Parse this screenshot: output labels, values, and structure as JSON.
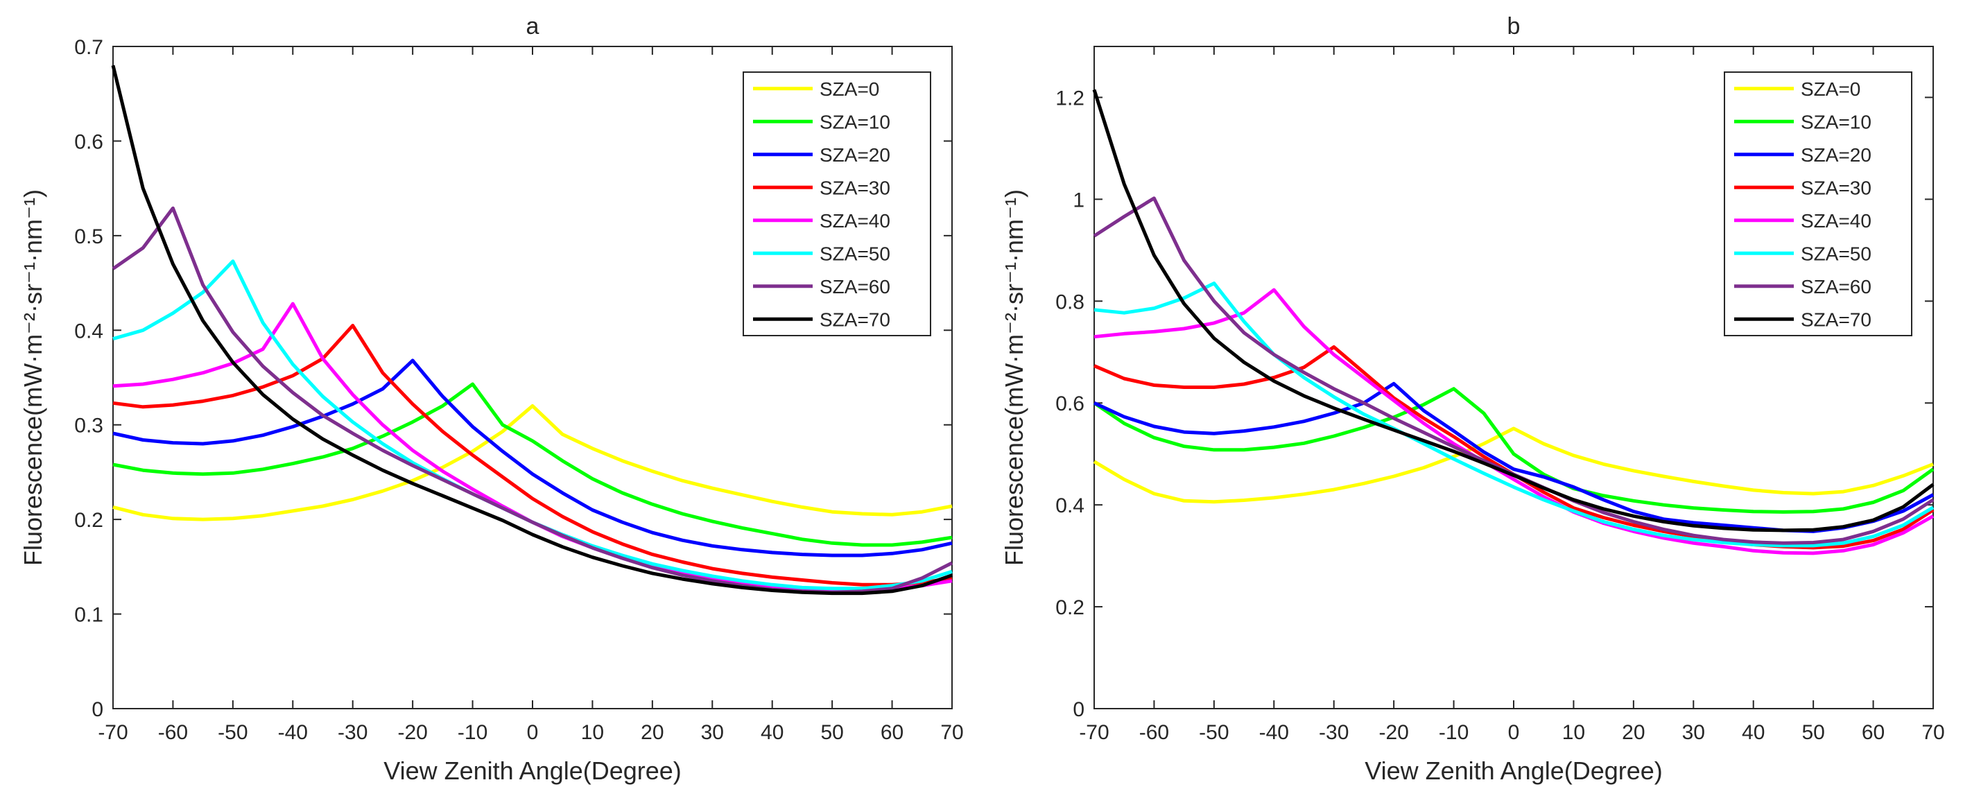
{
  "chart_data": [
    {
      "type": "line",
      "title": "a",
      "xlabel": "View Zenith Angle(Degree)",
      "ylabel": "Fluorescence(mW·m⁻²·sr⁻¹·nm⁻¹)",
      "xlim": [
        -70,
        70
      ],
      "ylim": [
        0,
        0.7
      ],
      "xticks": [
        -70,
        -60,
        -50,
        -40,
        -30,
        -20,
        -10,
        0,
        10,
        20,
        30,
        40,
        50,
        60,
        70
      ],
      "yticks": [
        0,
        0.1,
        0.2,
        0.3,
        0.4,
        0.5,
        0.6,
        0.7
      ],
      "grid": false,
      "legend_position": "top-right",
      "x": [
        -70,
        -65,
        -60,
        -55,
        -50,
        -45,
        -40,
        -35,
        -30,
        -25,
        -20,
        -15,
        -10,
        -5,
        0,
        5,
        10,
        15,
        20,
        25,
        30,
        35,
        40,
        45,
        50,
        55,
        60,
        65,
        70
      ],
      "series": [
        {
          "name": "SZA=0",
          "color": "#ffff00",
          "values": [
            0.213,
            0.205,
            0.201,
            0.2,
            0.201,
            0.204,
            0.209,
            0.214,
            0.221,
            0.23,
            0.241,
            0.255,
            0.272,
            0.293,
            0.32,
            0.29,
            0.275,
            0.262,
            0.251,
            0.241,
            0.233,
            0.226,
            0.219,
            0.213,
            0.208,
            0.206,
            0.205,
            0.208,
            0.214
          ]
        },
        {
          "name": "SZA=10",
          "color": "#00ff00",
          "values": [
            0.258,
            0.252,
            0.249,
            0.248,
            0.249,
            0.253,
            0.259,
            0.266,
            0.275,
            0.288,
            0.303,
            0.32,
            0.343,
            0.3,
            0.283,
            0.262,
            0.243,
            0.228,
            0.216,
            0.206,
            0.198,
            0.191,
            0.185,
            0.179,
            0.175,
            0.173,
            0.173,
            0.176,
            0.181
          ]
        },
        {
          "name": "SZA=20",
          "color": "#0000ff",
          "values": [
            0.291,
            0.284,
            0.281,
            0.28,
            0.283,
            0.289,
            0.298,
            0.309,
            0.322,
            0.338,
            0.368,
            0.33,
            0.298,
            0.272,
            0.248,
            0.228,
            0.21,
            0.197,
            0.186,
            0.178,
            0.172,
            0.168,
            0.165,
            0.163,
            0.162,
            0.162,
            0.164,
            0.168,
            0.175
          ]
        },
        {
          "name": "SZA=30",
          "color": "#ff0000",
          "values": [
            0.323,
            0.319,
            0.321,
            0.325,
            0.331,
            0.34,
            0.352,
            0.37,
            0.405,
            0.355,
            0.322,
            0.293,
            0.268,
            0.245,
            0.222,
            0.203,
            0.187,
            0.174,
            0.163,
            0.155,
            0.148,
            0.143,
            0.139,
            0.136,
            0.133,
            0.131,
            0.131,
            0.133,
            0.138
          ]
        },
        {
          "name": "SZA=40",
          "color": "#ff00ff",
          "values": [
            0.341,
            0.343,
            0.348,
            0.355,
            0.365,
            0.38,
            0.428,
            0.37,
            0.332,
            0.3,
            0.273,
            0.251,
            0.232,
            0.214,
            0.197,
            0.182,
            0.17,
            0.159,
            0.151,
            0.144,
            0.138,
            0.133,
            0.129,
            0.127,
            0.126,
            0.126,
            0.127,
            0.13,
            0.135
          ]
        },
        {
          "name": "SZA=50",
          "color": "#00ffff",
          "values": [
            0.391,
            0.4,
            0.418,
            0.44,
            0.473,
            0.408,
            0.364,
            0.33,
            0.303,
            0.28,
            0.26,
            0.243,
            0.227,
            0.212,
            0.197,
            0.184,
            0.172,
            0.162,
            0.153,
            0.146,
            0.14,
            0.135,
            0.131,
            0.128,
            0.127,
            0.127,
            0.13,
            0.135,
            0.145
          ]
        },
        {
          "name": "SZA=60",
          "color": "#7e2f8e",
          "values": [
            0.465,
            0.487,
            0.529,
            0.448,
            0.398,
            0.362,
            0.334,
            0.31,
            0.291,
            0.273,
            0.257,
            0.242,
            0.227,
            0.212,
            0.197,
            0.183,
            0.17,
            0.159,
            0.149,
            0.141,
            0.135,
            0.13,
            0.126,
            0.124,
            0.123,
            0.124,
            0.127,
            0.138,
            0.154
          ]
        },
        {
          "name": "SZA=70",
          "color": "#000000",
          "values": [
            0.68,
            0.55,
            0.47,
            0.41,
            0.366,
            0.332,
            0.306,
            0.285,
            0.268,
            0.252,
            0.238,
            0.225,
            0.212,
            0.199,
            0.184,
            0.171,
            0.16,
            0.151,
            0.143,
            0.137,
            0.132,
            0.128,
            0.125,
            0.123,
            0.122,
            0.122,
            0.124,
            0.13,
            0.141
          ]
        }
      ]
    },
    {
      "type": "line",
      "title": "b",
      "xlabel": "View Zenith Angle(Degree)",
      "ylabel": "Fluorescence(mW·m⁻²·sr⁻¹·nm⁻¹)",
      "xlim": [
        -70,
        70
      ],
      "ylim": [
        0,
        1.3
      ],
      "xticks": [
        -70,
        -60,
        -50,
        -40,
        -30,
        -20,
        -10,
        0,
        10,
        20,
        30,
        40,
        50,
        60,
        70
      ],
      "yticks": [
        0,
        0.2,
        0.4,
        0.6,
        0.8,
        1,
        1.2
      ],
      "grid": false,
      "legend_position": "top-right",
      "x": [
        -70,
        -65,
        -60,
        -55,
        -50,
        -45,
        -40,
        -35,
        -30,
        -25,
        -20,
        -15,
        -10,
        -5,
        0,
        5,
        10,
        15,
        20,
        25,
        30,
        35,
        40,
        45,
        50,
        55,
        60,
        65,
        70
      ],
      "series": [
        {
          "name": "SZA=0",
          "color": "#ffff00",
          "values": [
            0.485,
            0.45,
            0.422,
            0.408,
            0.406,
            0.409,
            0.414,
            0.421,
            0.43,
            0.442,
            0.456,
            0.473,
            0.495,
            0.52,
            0.55,
            0.52,
            0.497,
            0.48,
            0.467,
            0.456,
            0.446,
            0.437,
            0.429,
            0.424,
            0.422,
            0.426,
            0.438,
            0.457,
            0.48
          ]
        },
        {
          "name": "SZA=10",
          "color": "#00ff00",
          "values": [
            0.6,
            0.56,
            0.532,
            0.515,
            0.508,
            0.508,
            0.513,
            0.521,
            0.535,
            0.552,
            0.572,
            0.597,
            0.628,
            0.58,
            0.5,
            0.46,
            0.432,
            0.418,
            0.408,
            0.4,
            0.394,
            0.39,
            0.387,
            0.386,
            0.387,
            0.392,
            0.405,
            0.428,
            0.47
          ]
        },
        {
          "name": "SZA=20",
          "color": "#0000ff",
          "values": [
            0.6,
            0.573,
            0.554,
            0.543,
            0.54,
            0.545,
            0.553,
            0.564,
            0.58,
            0.6,
            0.638,
            0.585,
            0.545,
            0.504,
            0.47,
            0.455,
            0.435,
            0.41,
            0.387,
            0.372,
            0.365,
            0.36,
            0.355,
            0.35,
            0.348,
            0.355,
            0.368,
            0.388,
            0.42
          ]
        },
        {
          "name": "SZA=30",
          "color": "#ff0000",
          "values": [
            0.673,
            0.648,
            0.635,
            0.631,
            0.631,
            0.637,
            0.65,
            0.67,
            0.71,
            0.66,
            0.61,
            0.57,
            0.534,
            0.495,
            0.46,
            0.425,
            0.394,
            0.375,
            0.36,
            0.348,
            0.338,
            0.33,
            0.322,
            0.318,
            0.316,
            0.319,
            0.33,
            0.352,
            0.39
          ]
        },
        {
          "name": "SZA=40",
          "color": "#ff00ff",
          "values": [
            0.73,
            0.736,
            0.74,
            0.746,
            0.757,
            0.777,
            0.822,
            0.75,
            0.695,
            0.65,
            0.605,
            0.56,
            0.52,
            0.485,
            0.45,
            0.416,
            0.386,
            0.364,
            0.348,
            0.335,
            0.325,
            0.318,
            0.31,
            0.306,
            0.305,
            0.31,
            0.322,
            0.345,
            0.378
          ]
        },
        {
          "name": "SZA=50",
          "color": "#00ffff",
          "values": [
            0.783,
            0.777,
            0.786,
            0.806,
            0.835,
            0.76,
            0.695,
            0.65,
            0.612,
            0.578,
            0.55,
            0.52,
            0.49,
            0.462,
            0.435,
            0.41,
            0.388,
            0.367,
            0.352,
            0.34,
            0.332,
            0.326,
            0.322,
            0.32,
            0.32,
            0.325,
            0.338,
            0.36,
            0.395
          ]
        },
        {
          "name": "SZA=60",
          "color": "#7e2f8e",
          "values": [
            0.928,
            0.966,
            1.002,
            0.88,
            0.8,
            0.738,
            0.695,
            0.66,
            0.628,
            0.6,
            0.57,
            0.542,
            0.514,
            0.487,
            0.46,
            0.434,
            0.408,
            0.385,
            0.367,
            0.352,
            0.34,
            0.332,
            0.327,
            0.325,
            0.326,
            0.332,
            0.348,
            0.372,
            0.41
          ]
        },
        {
          "name": "SZA=70",
          "color": "#000000",
          "values": [
            1.215,
            1.03,
            0.89,
            0.795,
            0.727,
            0.68,
            0.643,
            0.614,
            0.59,
            0.568,
            0.547,
            0.526,
            0.505,
            0.482,
            0.458,
            0.433,
            0.41,
            0.392,
            0.378,
            0.367,
            0.359,
            0.354,
            0.351,
            0.35,
            0.351,
            0.357,
            0.37,
            0.396,
            0.44
          ]
        }
      ]
    }
  ]
}
